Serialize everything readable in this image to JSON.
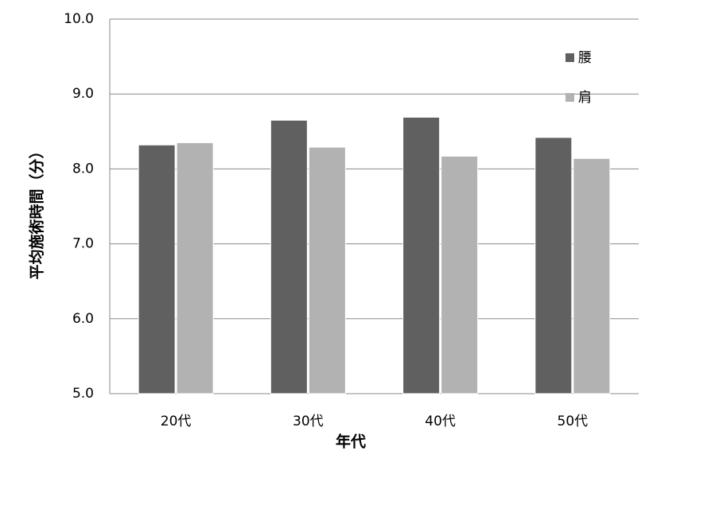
{
  "chart_data": {
    "type": "bar",
    "categories": [
      "20代",
      "30代",
      "40代",
      "50代"
    ],
    "series": [
      {
        "name": "腰",
        "color": "#606060",
        "values": [
          8.32,
          8.65,
          8.69,
          8.42
        ]
      },
      {
        "name": "肩",
        "color": "#b2b2b2",
        "values": [
          8.35,
          8.29,
          8.17,
          8.14
        ]
      }
    ],
    "xlabel": "年代",
    "ylabel": "平均施術時間（分）",
    "ylim": [
      5,
      10
    ],
    "yticks": [
      {
        "value": 5,
        "label": "5.0"
      },
      {
        "value": 6,
        "label": "6.0"
      },
      {
        "value": 7,
        "label": "7.0"
      },
      {
        "value": 8,
        "label": "8.0"
      },
      {
        "value": 9,
        "label": "9.0"
      },
      {
        "value": 10,
        "label": "10.0"
      }
    ],
    "grid": true,
    "legend": "top-right"
  }
}
